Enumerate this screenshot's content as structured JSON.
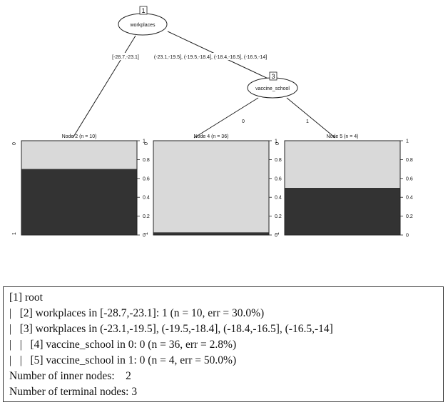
{
  "tree": {
    "root": {
      "id": "1",
      "var": "workplaces"
    },
    "split": {
      "id": "3",
      "var": "vaccine_school"
    },
    "edges": {
      "left": "[-28.7,-23.1]",
      "right": "(-23.1,-19.5], (-19.5,-18.4], (-18.4,-16.5], (-16.5,-14]",
      "zero": "0",
      "one": "1"
    },
    "terminals": [
      {
        "label": "Node 2 (n = 10)",
        "share_one": 0.7
      },
      {
        "label": "Node 4 (n = 36)",
        "share_one": 0.028
      },
      {
        "label": "Node 5 (n = 4)",
        "share_one": 0.5
      }
    ],
    "left_axis": [
      "0",
      "1"
    ],
    "right_axis": [
      "1",
      "0.8",
      "0.6",
      "0.4",
      "0.2",
      "0"
    ],
    "colors": {
      "class_0": "#d9d9d9",
      "class_1": "#333333",
      "border": "#222222"
    }
  },
  "output": [
    "[1] root",
    "|   [2] workplaces in [-28.7,-23.1]: 1 (n = 10, err = 30.0%)",
    "|   [3] workplaces in (-23.1,-19.5], (-19.5,-18.4], (-18.4,-16.5], (-16.5,-14]",
    "|   |   [4] vaccine_school in 0: 0 (n = 36, err = 2.8%)",
    "|   |   [5] vaccine_school in 1: 0 (n = 4, err = 50.0%)",
    "Number of inner nodes:    2",
    "Number of terminal nodes: 3"
  ]
}
